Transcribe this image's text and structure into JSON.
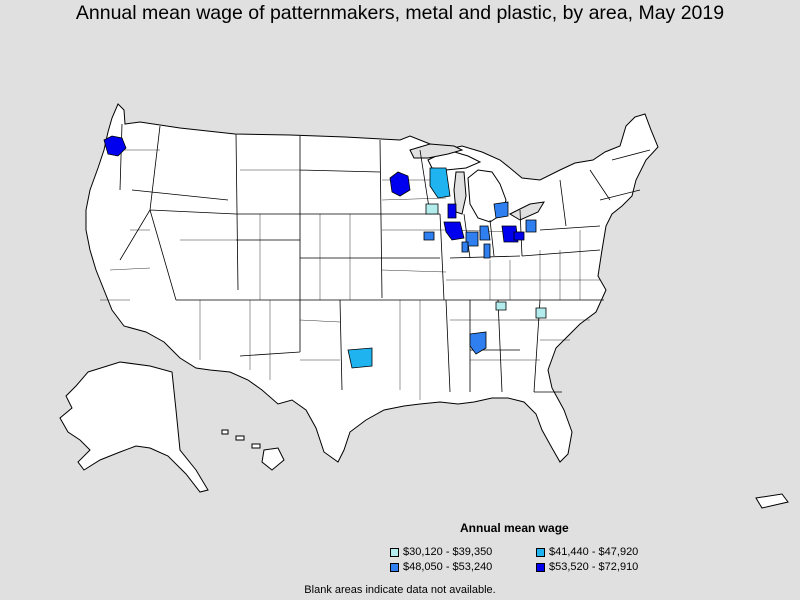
{
  "title": "Annual mean wage of patternmakers, metal and plastic, by area, May 2019",
  "legend": {
    "title": "Annual mean wage",
    "items": [
      {
        "label": "$30,120 - $39,350",
        "color": "#b2ecec"
      },
      {
        "label": "$41,440 - $47,920",
        "color": "#1fb4f0"
      },
      {
        "label": "$48,050 - $53,240",
        "color": "#2f7ff0"
      },
      {
        "label": "$53,520 - $72,910",
        "color": "#0000ee"
      }
    ]
  },
  "footnote": "Blank areas indicate data not available.",
  "colors": {
    "background": "#e0e0e0",
    "land": "#ffffff",
    "border": "#000000"
  }
}
